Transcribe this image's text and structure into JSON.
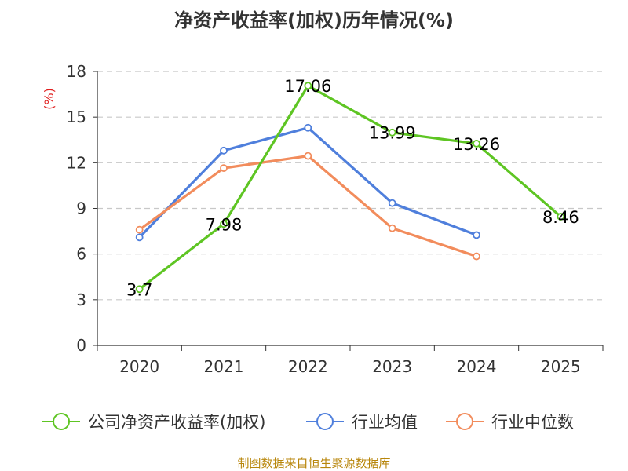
{
  "chart_data": {
    "type": "line",
    "title": "净资产收益率(加权)历年情况(%)",
    "ylabel": "(%)",
    "xlabel": "",
    "ylim": [
      0,
      18
    ],
    "yticks": [
      0,
      3,
      6,
      9,
      12,
      15,
      18
    ],
    "grid": true,
    "legend_position": "bottom",
    "categories": [
      "2020",
      "2021",
      "2022",
      "2023",
      "2024",
      "2025"
    ],
    "series": [
      {
        "name": "公司净资产收益率(加权)",
        "color": "#5ec523",
        "values": [
          3.7,
          7.98,
          17.06,
          13.99,
          13.26,
          8.46
        ],
        "labels": [
          "3.7",
          "7.98",
          "17.06",
          "13.99",
          "13.26",
          "8.46"
        ]
      },
      {
        "name": "行业均值",
        "color": "#4f7fdc",
        "values": [
          7.1,
          12.8,
          14.3,
          9.35,
          7.25,
          null
        ]
      },
      {
        "name": "行业中位数",
        "color": "#f28c5c",
        "values": [
          7.6,
          11.65,
          12.45,
          7.7,
          5.85,
          null
        ]
      }
    ]
  },
  "source": "制图数据来自恒生聚源数据库"
}
